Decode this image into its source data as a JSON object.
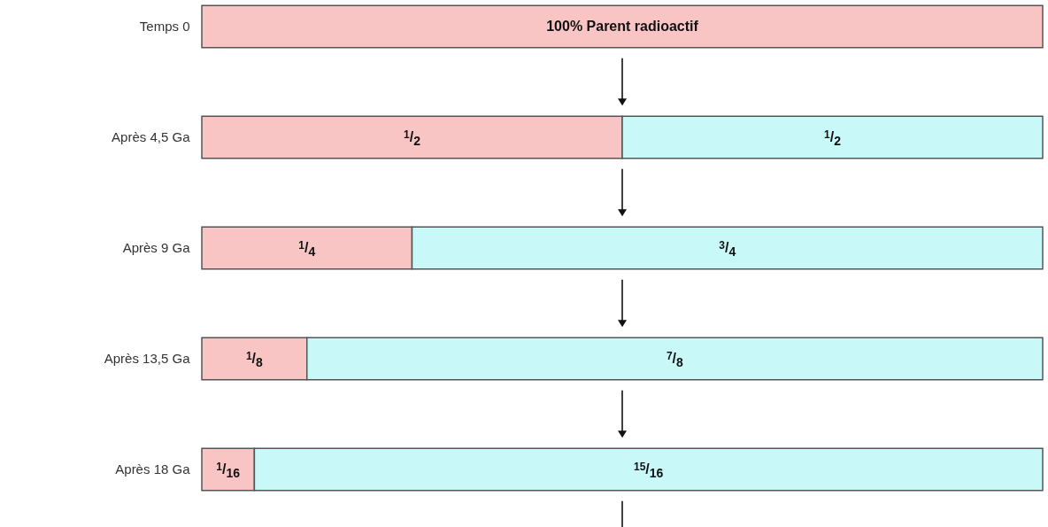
{
  "chart_data": {
    "type": "bar",
    "orientation": "horizontal",
    "stacked": true,
    "xlim": [
      0,
      1
    ],
    "tick_labels": false,
    "categories": [
      "Temps 0",
      "Après 4,5 Ga",
      "Après 9 Ga",
      "Après 13,5 Ga",
      "Après 18 Ga"
    ],
    "series": [
      {
        "color": "#f8c4c4",
        "values": [
          1,
          0.5,
          0.25,
          0.125,
          0.0625
        ],
        "value_labels": [
          "100%  Parent radioactif",
          "$^{1}$/$_{2}$",
          "$^{1}$/$_{4}$",
          "$^{1}$/$_{8}$",
          "$^{1}$/$_{16}$"
        ]
      },
      {
        "color": "#c8f8f8",
        "values": [
          null,
          0.5,
          0.75,
          0.875,
          0.9375
        ],
        "value_labels": [
          null,
          "$^{1}$/$_{2}$",
          "$^{3}$/$_{4}$",
          "$^{7}$/$_{8}$",
          "$^{15}$/$_{16}$"
        ]
      }
    ]
  }
}
